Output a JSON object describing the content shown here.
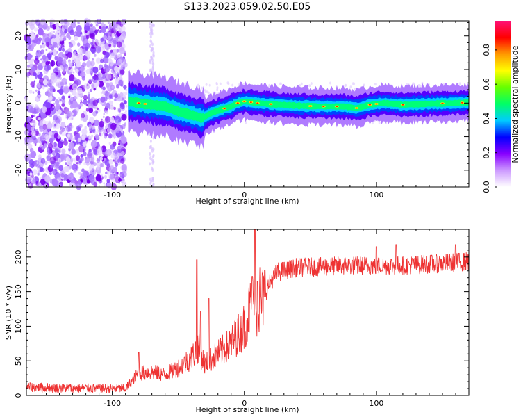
{
  "title": "S133.2023.059.02.50.E05",
  "chart_data": [
    {
      "type": "heatmap",
      "xlabel": "Height of straight line (km)",
      "ylabel": "Frequency (Hz)",
      "xlim": [
        -165,
        170
      ],
      "ylim": [
        -25,
        24.5
      ],
      "xticks": [
        -100,
        0,
        100
      ],
      "yticks": [
        -20,
        -10,
        0,
        10,
        20
      ],
      "grid": false,
      "noise_region_x": [
        -165,
        -90
      ],
      "signal_track": [
        {
          "x": -88,
          "y": 0.5
        },
        {
          "x": -80,
          "y": 0.0
        },
        {
          "x": -70,
          "y": -0.5
        },
        {
          "x": -60,
          "y": -1.0
        },
        {
          "x": -50,
          "y": -2.5
        },
        {
          "x": -40,
          "y": -3.5
        },
        {
          "x": -32,
          "y": -4.5
        },
        {
          "x": -25,
          "y": -3.0
        },
        {
          "x": -18,
          "y": -2.0
        },
        {
          "x": -10,
          "y": -1.0
        },
        {
          "x": -5,
          "y": 0.0
        },
        {
          "x": 0,
          "y": 0.5
        },
        {
          "x": 10,
          "y": 0.0
        },
        {
          "x": 20,
          "y": -0.3
        },
        {
          "x": 40,
          "y": -0.8
        },
        {
          "x": 60,
          "y": -1.0
        },
        {
          "x": 75,
          "y": -1.0
        },
        {
          "x": 85,
          "y": -1.5
        },
        {
          "x": 95,
          "y": -0.5
        },
        {
          "x": 105,
          "y": 0.0
        },
        {
          "x": 120,
          "y": -0.5
        },
        {
          "x": 140,
          "y": -0.2
        },
        {
          "x": 160,
          "y": 0.0
        },
        {
          "x": 170,
          "y": 0.2
        }
      ],
      "colorbar": {
        "label": "Normalized spectral amplitude",
        "ticks": [
          "0.0",
          "0.2",
          "0.4",
          "0.6",
          "0.8"
        ],
        "range": [
          0,
          0.97
        ],
        "colors": [
          "#ffffff",
          "#cc99ff",
          "#8800ff",
          "#0000ff",
          "#00ccff",
          "#00ff66",
          "#66ff00",
          "#ffff00",
          "#ff9900",
          "#ff0000",
          "#ff1177"
        ]
      }
    },
    {
      "type": "line",
      "xlabel": "Height of straight line (km)",
      "ylabel": "SNR (10 * v/v)",
      "xlim": [
        -165,
        170
      ],
      "ylim": [
        0,
        240
      ],
      "xticks": [
        -100,
        0,
        100
      ],
      "yticks": [
        0,
        50,
        100,
        150,
        200
      ],
      "grid": false,
      "line_color": "#ee3333",
      "series": [
        {
          "x": [
            -165,
            -140,
            -110,
            -90,
            -80,
            -70,
            -60,
            -50,
            -40,
            -35,
            -30,
            -20,
            -10,
            0,
            5,
            10,
            15,
            20,
            25,
            40,
            60,
            80,
            100,
            120,
            140,
            160,
            170
          ],
          "values": [
            12,
            11,
            10,
            10,
            32,
            34,
            30,
            40,
            55,
            70,
            45,
            60,
            75,
            100,
            130,
            120,
            145,
            165,
            178,
            185,
            186,
            188,
            187,
            188,
            190,
            192,
            194
          ]
        }
      ],
      "spikes": [
        {
          "x": -80,
          "y": 62
        },
        {
          "x": -36,
          "y": 196
        },
        {
          "x": -33,
          "y": 122
        },
        {
          "x": -27,
          "y": 140
        },
        {
          "x": 6,
          "y": 172
        },
        {
          "x": 8,
          "y": 240
        },
        {
          "x": 10,
          "y": 165
        },
        {
          "x": 12,
          "y": 185
        },
        {
          "x": 100,
          "y": 215
        },
        {
          "x": 115,
          "y": 218
        },
        {
          "x": 160,
          "y": 218
        }
      ]
    }
  ]
}
